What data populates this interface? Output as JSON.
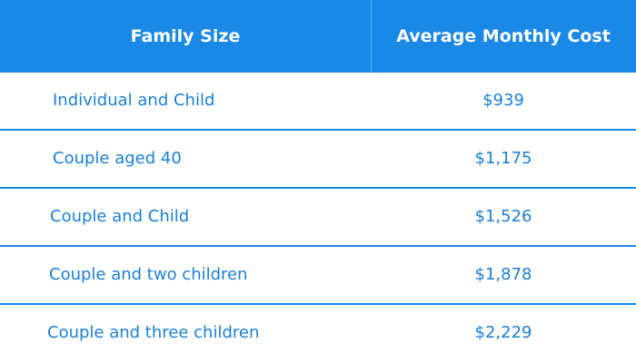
{
  "table": {
    "headers": {
      "family_size": "Family Size",
      "average_monthly_cost": "Average Monthly Cost"
    },
    "rows": [
      {
        "family_size": "Individual and Child",
        "cost": "$939"
      },
      {
        "family_size": "Couple aged 40",
        "cost": "$1,175"
      },
      {
        "family_size": "Couple and Child",
        "cost": "$1,526"
      },
      {
        "family_size": "Couple and two children",
        "cost": "$1,878"
      },
      {
        "family_size": "Couple and three children",
        "cost": "$2,229"
      }
    ]
  },
  "colors": {
    "header_background": "#1a88e5",
    "header_text": "#ffffff",
    "cell_text": "#1a7fd6",
    "row_divider": "#1a88e5"
  }
}
